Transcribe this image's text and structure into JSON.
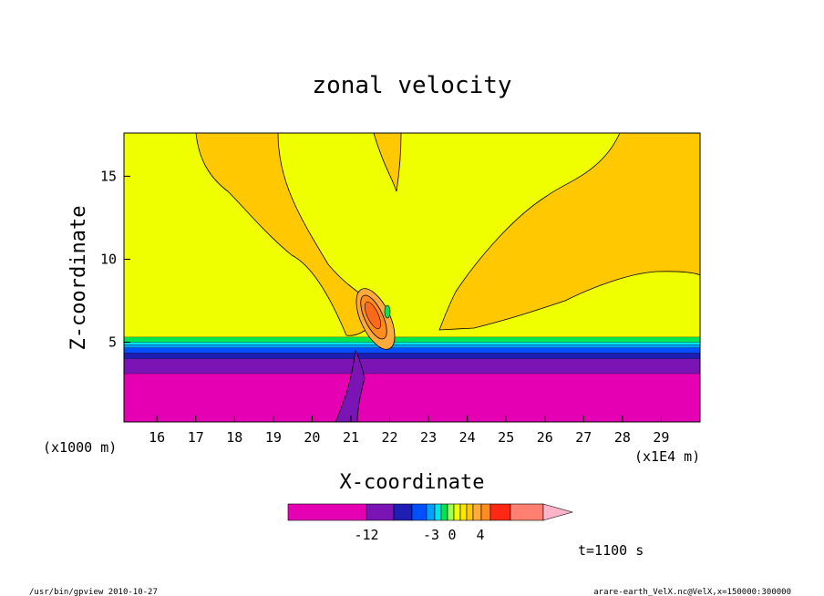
{
  "chart_data": {
    "type": "heatmap",
    "title": "zonal velocity",
    "xlabel": "X-coordinate",
    "ylabel": "Z-coordinate",
    "x_unit_left": "(x1000 m)",
    "x_unit_right": "(x1E4 m)",
    "xlim": [
      15.15,
      30.0
    ],
    "ylim": [
      0.2,
      17.6
    ],
    "x_ticks": [
      "16",
      "17",
      "18",
      "19",
      "20",
      "21",
      "22",
      "23",
      "24",
      "25",
      "26",
      "27",
      "28",
      "29"
    ],
    "y_ticks": [
      "5",
      "10",
      "15"
    ],
    "y_tick_values": [
      5,
      10,
      15
    ],
    "colorbar": {
      "levels": [
        -21,
        -15,
        -12,
        -9,
        -6,
        -4,
        -3,
        -2,
        -1,
        0,
        1,
        2,
        3,
        4,
        6,
        9
      ],
      "colors": [
        "#e600b4",
        "#7a14b4",
        "#1e1eb4",
        "#0050ff",
        "#00a0ff",
        "#00e6e6",
        "#00e650",
        "#a0ff50",
        "#f0ff00",
        "#ffe600",
        "#ffc800",
        "#ffaa3c",
        "#ff8c1e",
        "#ff2814",
        "#ff8070",
        "#ffb4c8"
      ],
      "labels": [
        "-12",
        "-3",
        "0",
        "4"
      ]
    },
    "bands": [
      {
        "z": 0.2,
        "color": "#e600b4"
      },
      {
        "z": 3.1,
        "color": "#7a14b4"
      },
      {
        "z": 4.0,
        "color": "#1e1eb4"
      },
      {
        "z": 4.35,
        "color": "#0050ff"
      },
      {
        "z": 4.65,
        "color": "#00a0ff"
      },
      {
        "z": 4.85,
        "color": "#00e6e6"
      },
      {
        "z": 5.0,
        "color": "#00e650"
      },
      {
        "z": 5.3,
        "color": "#f0ff00"
      }
    ],
    "time_label": "t=1100 s"
  },
  "footer": {
    "left": "/usr/bin/gpview   2010-10-27",
    "right": "arare-earth_VelX.nc@VelX,x=150000:300000"
  }
}
